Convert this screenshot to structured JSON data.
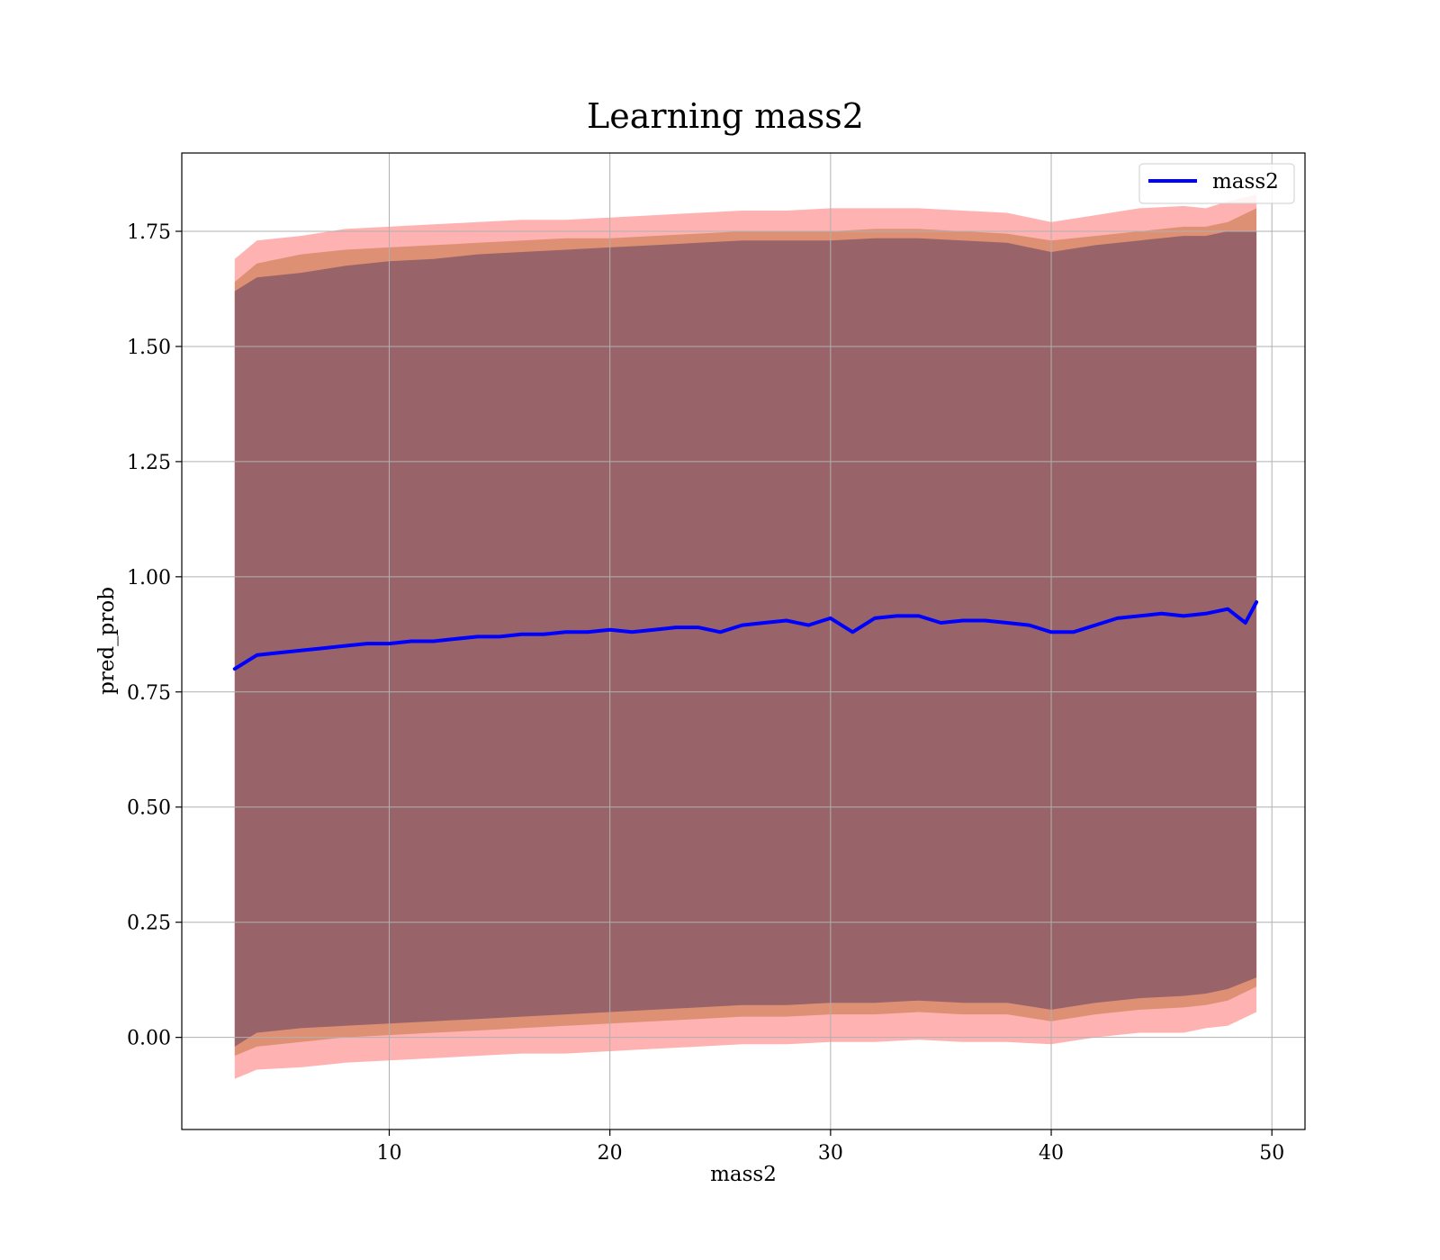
{
  "chart_data": {
    "type": "line",
    "title": "Learning mass2",
    "xlabel": "mass2",
    "ylabel": "pred_prob",
    "xlim": [
      0.6,
      51.5
    ],
    "ylim": [
      -0.2,
      1.92
    ],
    "xticks": [
      10,
      20,
      30,
      40,
      50
    ],
    "yticks": [
      0.0,
      0.25,
      0.5,
      0.75,
      1.0,
      1.25,
      1.5,
      1.75
    ],
    "xtick_labels": [
      "10",
      "20",
      "30",
      "40",
      "50"
    ],
    "ytick_labels": [
      "0.00",
      "0.25",
      "0.50",
      "0.75",
      "1.00",
      "1.25",
      "1.50",
      "1.75"
    ],
    "grid": true,
    "legend_position": "top-right",
    "series": [
      {
        "name": "mass2",
        "color": "#0000ff",
        "x": [
          3.0,
          4,
          5,
          6,
          7,
          8,
          9,
          10,
          11,
          12,
          13,
          14,
          15,
          16,
          17,
          18,
          19,
          20,
          21,
          22,
          23,
          24,
          25,
          26,
          27,
          28,
          29,
          30,
          31,
          32,
          33,
          34,
          35,
          36,
          37,
          38,
          39,
          40,
          41,
          42,
          43,
          44,
          45,
          46,
          47,
          48,
          48.8,
          49.3
        ],
        "y": [
          0.8,
          0.83,
          0.835,
          0.84,
          0.845,
          0.85,
          0.855,
          0.855,
          0.86,
          0.86,
          0.865,
          0.87,
          0.87,
          0.875,
          0.875,
          0.88,
          0.88,
          0.885,
          0.88,
          0.885,
          0.89,
          0.89,
          0.88,
          0.895,
          0.9,
          0.905,
          0.895,
          0.91,
          0.88,
          0.91,
          0.915,
          0.915,
          0.9,
          0.905,
          0.905,
          0.9,
          0.895,
          0.88,
          0.88,
          0.895,
          0.91,
          0.915,
          0.92,
          0.915,
          0.92,
          0.93,
          0.9,
          0.945
        ]
      }
    ],
    "bands": [
      {
        "color": "#ff0000",
        "opacity": 0.3,
        "x": [
          3.0,
          4,
          6,
          8,
          10,
          12,
          14,
          16,
          18,
          20,
          22,
          24,
          26,
          28,
          30,
          32,
          34,
          36,
          38,
          40,
          42,
          44,
          46,
          47,
          48,
          49.3
        ],
        "upper": [
          1.69,
          1.73,
          1.74,
          1.755,
          1.76,
          1.765,
          1.77,
          1.775,
          1.775,
          1.78,
          1.785,
          1.79,
          1.795,
          1.795,
          1.8,
          1.8,
          1.8,
          1.795,
          1.79,
          1.77,
          1.785,
          1.8,
          1.805,
          1.8,
          1.815,
          1.83
        ],
        "lower": [
          -0.09,
          -0.07,
          -0.065,
          -0.055,
          -0.05,
          -0.045,
          -0.04,
          -0.035,
          -0.035,
          -0.03,
          -0.025,
          -0.02,
          -0.015,
          -0.015,
          -0.01,
          -0.01,
          -0.005,
          -0.01,
          -0.01,
          -0.015,
          0.0,
          0.01,
          0.01,
          0.02,
          0.025,
          0.055
        ]
      },
      {
        "color": "#a05000",
        "opacity": 0.35,
        "x": [
          3.0,
          4,
          6,
          8,
          10,
          12,
          14,
          16,
          18,
          20,
          22,
          24,
          26,
          28,
          30,
          32,
          34,
          36,
          38,
          40,
          42,
          44,
          46,
          47,
          48,
          49.3
        ],
        "upper": [
          1.64,
          1.68,
          1.7,
          1.71,
          1.715,
          1.72,
          1.725,
          1.73,
          1.735,
          1.735,
          1.74,
          1.745,
          1.75,
          1.75,
          1.75,
          1.755,
          1.755,
          1.75,
          1.745,
          1.73,
          1.74,
          1.75,
          1.76,
          1.76,
          1.77,
          1.8
        ],
        "lower": [
          -0.04,
          -0.02,
          -0.01,
          0.0,
          0.005,
          0.01,
          0.015,
          0.02,
          0.025,
          0.03,
          0.035,
          0.04,
          0.045,
          0.045,
          0.05,
          0.05,
          0.055,
          0.05,
          0.05,
          0.035,
          0.05,
          0.06,
          0.065,
          0.07,
          0.08,
          0.11
        ]
      },
      {
        "color": "#604060",
        "opacity": 0.55,
        "x": [
          3.0,
          4,
          6,
          8,
          10,
          12,
          14,
          16,
          18,
          20,
          22,
          24,
          26,
          28,
          30,
          32,
          34,
          36,
          38,
          40,
          42,
          44,
          46,
          47,
          48,
          49.3
        ],
        "upper": [
          1.62,
          1.65,
          1.66,
          1.675,
          1.685,
          1.69,
          1.7,
          1.705,
          1.71,
          1.715,
          1.72,
          1.725,
          1.73,
          1.73,
          1.73,
          1.735,
          1.735,
          1.73,
          1.725,
          1.705,
          1.72,
          1.73,
          1.74,
          1.74,
          1.75,
          1.75
        ],
        "lower": [
          -0.02,
          0.01,
          0.02,
          0.025,
          0.03,
          0.035,
          0.04,
          0.045,
          0.05,
          0.055,
          0.06,
          0.065,
          0.07,
          0.07,
          0.075,
          0.075,
          0.08,
          0.075,
          0.075,
          0.06,
          0.075,
          0.085,
          0.09,
          0.095,
          0.105,
          0.13
        ]
      }
    ]
  }
}
